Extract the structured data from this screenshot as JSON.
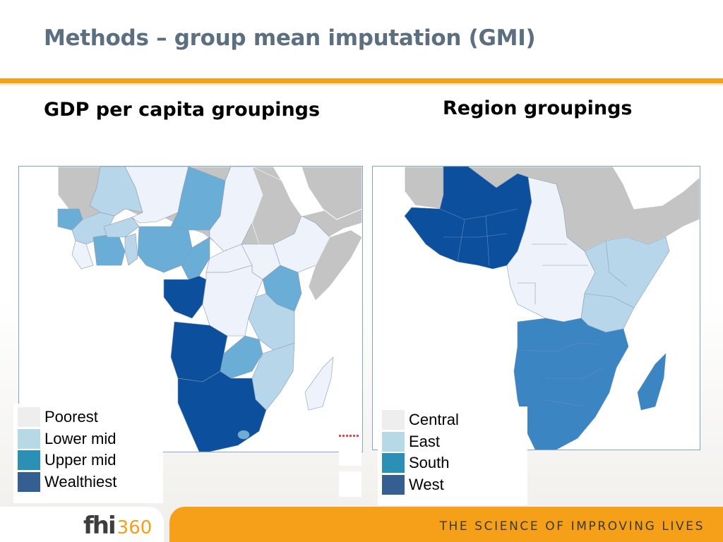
{
  "slide": {
    "title": "Methods – group mean imputation (GMI)",
    "left_subtitle": "GDP per capita groupings",
    "right_subtitle": "Region groupings"
  },
  "left_legend": {
    "items": [
      {
        "label": "Poorest",
        "color": "#eeeeee"
      },
      {
        "label": "Lower mid",
        "color": "#b7d9e6"
      },
      {
        "label": "Upper mid",
        "color": "#2c8fb5"
      },
      {
        "label": "Wealthiest",
        "color": "#355f93"
      }
    ]
  },
  "right_legend": {
    "items": [
      {
        "label": "Central",
        "color": "#eeeeee"
      },
      {
        "label": "East",
        "color": "#b7d9e6"
      },
      {
        "label": "South",
        "color": "#2c8fb5"
      },
      {
        "label": "West",
        "color": "#355f93"
      }
    ]
  },
  "map_colors": {
    "land_outside": "#c4c4c4",
    "lightest": "#eef2fb",
    "light": "#b7d6ea",
    "mid": "#6aaed8",
    "mid_dark": "#3b85c3",
    "darkest": "#0c4f9d",
    "border": "#8a9ab0"
  },
  "footer": {
    "logo_text": "fhi",
    "logo_number": "360",
    "tagline": "THE SCIENCE OF IMPROVING LIVES",
    "accent": "#f6a01a"
  }
}
